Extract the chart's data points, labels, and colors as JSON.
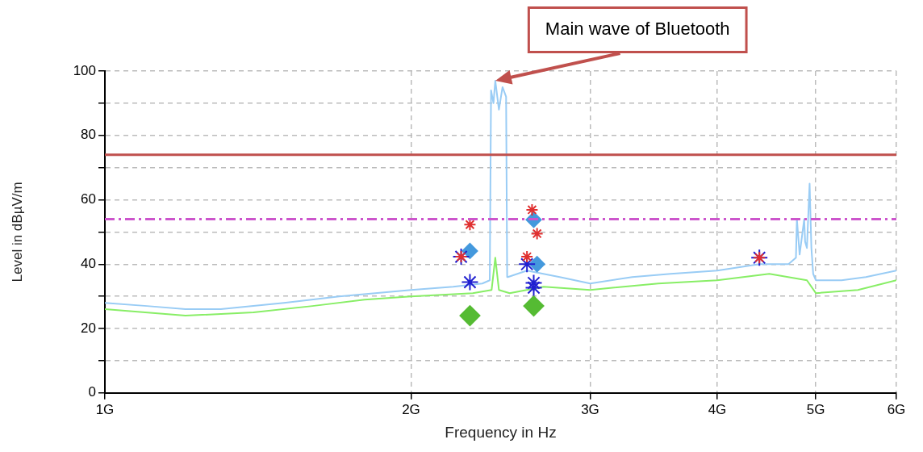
{
  "chart_data": {
    "type": "line",
    "xlabel": "Frequency in Hz",
    "ylabel": "Level in dBµV/m",
    "log": "x",
    "grid": true,
    "legend": false,
    "xlim": [
      1,
      6
    ],
    "xticks": [
      {
        "value": 1,
        "label": "1G"
      },
      {
        "value": 2,
        "label": "2G"
      },
      {
        "value": 3,
        "label": "3G"
      },
      {
        "value": 4,
        "label": "4G"
      },
      {
        "value": 5,
        "label": "5G"
      },
      {
        "value": 6,
        "label": "6G"
      }
    ],
    "ylim": [
      0,
      100
    ],
    "yticks": [
      0,
      {
        "value": 10,
        "label": null
      },
      20,
      {
        "value": 30,
        "label": null
      },
      40,
      {
        "value": 50,
        "label": null
      },
      60,
      {
        "value": 70,
        "label": null
      },
      80,
      {
        "value": 90,
        "label": null
      },
      100
    ],
    "ref_lines": [
      {
        "axis": "y",
        "value": 74,
        "color": "#c0504d",
        "line_style": "solid"
      },
      {
        "axis": "y",
        "value": 54,
        "color": "#cc55cc",
        "line_style": "dashed"
      }
    ],
    "annotations": [
      "Main wave of Bluetooth"
    ],
    "series": [
      {
        "type": "line",
        "marker": "none",
        "color": "#99ccf5",
        "x": [
          1,
          1.1,
          1.2,
          1.3,
          1.5,
          1.7,
          2,
          2.2,
          2.35,
          2.39,
          2.397,
          2.41,
          2.42,
          2.44,
          2.46,
          2.48,
          2.486,
          2.49,
          2.6,
          2.8,
          3,
          3.3,
          3.6,
          4,
          4.4,
          4.7,
          4.78,
          4.79,
          4.82,
          4.87,
          4.88,
          4.9,
          4.93,
          4.95,
          4.97,
          5,
          5.3,
          5.6,
          6
        ],
        "values": [
          28,
          27,
          26,
          26,
          28,
          30,
          32,
          33,
          34,
          35,
          94,
          90,
          97,
          88,
          95,
          92,
          36,
          36,
          38,
          36,
          34,
          36,
          37,
          38,
          40,
          40,
          42,
          54,
          43,
          54,
          47,
          45,
          65,
          45,
          37,
          35,
          35,
          36,
          38
        ]
      },
      {
        "type": "line",
        "marker": "none",
        "color": "#88ee66",
        "x": [
          1,
          1.2,
          1.4,
          1.6,
          1.8,
          2,
          2.3,
          2.4,
          2.42,
          2.44,
          2.5,
          2.7,
          3,
          3.5,
          4,
          4.5,
          4.9,
          5,
          5.5,
          6
        ],
        "values": [
          26,
          24,
          25,
          27,
          29,
          30,
          31,
          32,
          42,
          32,
          31,
          33,
          32,
          34,
          35,
          37,
          35,
          31,
          32,
          35
        ]
      },
      {
        "type": "scatter",
        "marker": "cross",
        "color": "#e03030",
        "x": [
          2.24,
          2.285,
          2.6,
          2.63,
          2.66,
          4.4
        ],
        "values": [
          42.3,
          52.3,
          42.3,
          56.9,
          49.5,
          42
        ]
      },
      {
        "type": "scatter",
        "marker": "cross",
        "color": "#2020d0",
        "x": [
          2.24,
          2.285,
          2.6,
          2.64,
          2.64,
          4.4
        ],
        "values": [
          42.3,
          34.4,
          40,
          34.2,
          32.7,
          42
        ]
      },
      {
        "type": "scatter",
        "marker": "diamond",
        "color": "#4499dd",
        "x": [
          2.285,
          2.64,
          2.66
        ],
        "values": [
          44.1,
          53.8,
          40
        ]
      },
      {
        "type": "scatter",
        "marker": "diamond",
        "color": "#55bb33",
        "x": [
          2.285,
          2.64
        ],
        "values": [
          24,
          27
        ]
      }
    ]
  }
}
